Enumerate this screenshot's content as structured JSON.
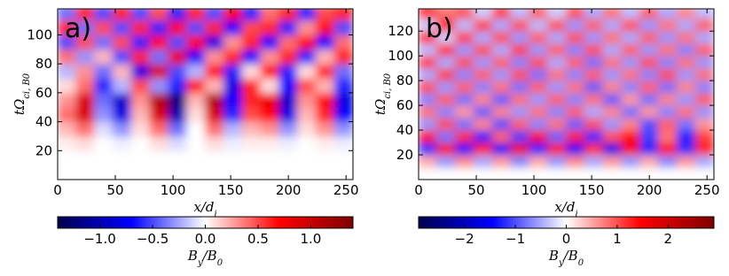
{
  "chart_data": [
    {
      "type": "heatmap",
      "panel_label": "a)",
      "xbins": [
        0,
        16,
        32,
        48,
        64,
        80,
        96,
        112,
        128,
        144,
        160,
        176,
        192,
        208,
        224,
        240,
        256
      ],
      "ybins": [
        0,
        10,
        20,
        30,
        40,
        50,
        60,
        70,
        80,
        90,
        100,
        110,
        120
      ],
      "z": [
        [
          0,
          0,
          0,
          0,
          0,
          0,
          0,
          0,
          0,
          0,
          0,
          0,
          0,
          0,
          0,
          0
        ],
        [
          0,
          0,
          0,
          0,
          0,
          0,
          0,
          0,
          0,
          0,
          0,
          0,
          0,
          0,
          0,
          0
        ],
        [
          0.05,
          0.1,
          0,
          -0.05,
          0,
          0.1,
          -0.1,
          0,
          0.1,
          -0.05,
          0.05,
          0.05,
          -0.05,
          0,
          0.05,
          -0.05
        ],
        [
          0.2,
          0.4,
          -0.1,
          -0.3,
          0.1,
          0.4,
          -0.4,
          0,
          0.4,
          -0.2,
          0.2,
          0.3,
          -0.3,
          0.1,
          0.3,
          -0.3
        ],
        [
          0.4,
          0.9,
          -0.3,
          -0.8,
          0.2,
          0.9,
          -1.0,
          0.1,
          0.9,
          -0.6,
          0.5,
          0.7,
          -0.8,
          0.2,
          0.6,
          -0.7
        ],
        [
          0.3,
          0.9,
          -0.4,
          -0.9,
          0.3,
          1.1,
          -1.2,
          0.2,
          1.1,
          -0.7,
          0.6,
          0.8,
          -0.9,
          0.3,
          0.7,
          -0.8
        ],
        [
          0.1,
          0.4,
          -0.6,
          -0.2,
          0.5,
          -0.3,
          -0.6,
          0.7,
          0.2,
          -0.8,
          0.6,
          0.1,
          -0.7,
          0.5,
          0.2,
          -0.6
        ],
        [
          -0.2,
          0.3,
          -0.4,
          0.2,
          -0.8,
          0.9,
          -0.5,
          -0.2,
          0.7,
          -0.6,
          0.1,
          0.7,
          -0.6,
          0.1,
          0.6,
          -0.4
        ],
        [
          0.4,
          -0.3,
          0.2,
          -0.5,
          0.6,
          -0.4,
          0.8,
          -0.7,
          0.3,
          0.6,
          -0.7,
          0.3,
          0.6,
          -0.6,
          0.2,
          0.6
        ],
        [
          -0.5,
          0.5,
          -0.4,
          0.5,
          -0.6,
          0.7,
          -0.5,
          0.7,
          -0.8,
          0.3,
          0.6,
          -0.7,
          0.4,
          0.7,
          -0.7,
          0.4
        ],
        [
          0.6,
          -0.4,
          0.5,
          -0.5,
          0.6,
          -0.6,
          0.7,
          -0.5,
          0.6,
          -0.7,
          0.5,
          0.6,
          -0.6,
          0.3,
          0.7,
          -0.5
        ],
        [
          -0.4,
          0.6,
          -0.5,
          0.6,
          -0.5,
          0.5,
          -0.6,
          0.6,
          -0.5,
          0.7,
          -0.6,
          0.4,
          0.6,
          -0.6,
          0.5,
          0.6
        ]
      ],
      "xlim": [
        0,
        256
      ],
      "ylim": [
        0,
        118
      ],
      "xticks": [
        0,
        50,
        100,
        150,
        200,
        250
      ],
      "yticks": [
        20,
        40,
        60,
        80,
        100
      ],
      "xlabel": [
        "x/d",
        "i"
      ],
      "ylabel": [
        "tΩ",
        "ci, B0"
      ],
      "clim": [
        -1.4,
        1.4
      ],
      "colorbar_ticks": [
        {
          "value": -1,
          "label": "−1.0"
        },
        {
          "value": -0.5,
          "label": "−0.5"
        },
        {
          "value": 0,
          "label": "0.0"
        },
        0.5,
        {
          "value": 1,
          "label": "1.0"
        }
      ],
      "colorbar_label": [
        "B",
        "y",
        "/B",
        "0"
      ],
      "colormap": "seismic"
    },
    {
      "type": "heatmap",
      "panel_label": "b)",
      "xbins": [
        0,
        16,
        32,
        48,
        64,
        80,
        96,
        112,
        128,
        144,
        160,
        176,
        192,
        208,
        224,
        240,
        256
      ],
      "ybins": [
        0,
        10,
        20,
        30,
        40,
        50,
        60,
        70,
        80,
        90,
        100,
        110,
        120,
        130,
        140
      ],
      "z": [
        [
          0,
          0,
          0,
          0,
          0,
          0,
          0,
          0,
          0,
          0,
          0,
          0,
          0,
          0,
          0,
          0
        ],
        [
          0.5,
          -0.6,
          0.7,
          -0.5,
          0.6,
          -0.7,
          0.5,
          -0.6,
          0.7,
          -0.5,
          0.6,
          -0.6,
          0.5,
          -0.7,
          0.6,
          -0.5
        ],
        [
          -1.2,
          1.5,
          -1.4,
          1.3,
          -1.5,
          1.6,
          -1.3,
          1.4,
          -1.5,
          1.2,
          -1.6,
          1.5,
          -1.3,
          1.4,
          -1.2,
          1.3
        ],
        [
          1.4,
          -0.8,
          1.2,
          -1.3,
          0.9,
          -1.1,
          1.5,
          -0.9,
          1.3,
          -1.2,
          1.0,
          1.4,
          -1.1,
          0.8,
          -1.3,
          1.1
        ],
        [
          -0.6,
          1.0,
          -0.8,
          0.7,
          -1.0,
          0.9,
          -0.7,
          0.8,
          -0.9,
          1.0,
          -0.6,
          0.7,
          -1.0,
          0.9,
          -0.8,
          0.6
        ],
        [
          0.8,
          -0.7,
          0.6,
          -0.9,
          0.7,
          -0.6,
          0.8,
          -0.7,
          0.9,
          -0.5,
          0.7,
          -0.8,
          0.6,
          -0.7,
          0.8,
          -0.6
        ],
        [
          -0.7,
          0.9,
          -0.8,
          0.7,
          -0.9,
          0.8,
          -0.6,
          0.9,
          -0.7,
          0.8,
          -0.9,
          0.6,
          -0.8,
          0.7,
          -0.6,
          0.9
        ],
        [
          1.0,
          -0.6,
          0.9,
          -0.7,
          0.8,
          -0.8,
          0.9,
          -0.6,
          0.8,
          -0.9,
          0.7,
          -0.7,
          0.9,
          -0.8,
          0.7,
          -0.7
        ],
        [
          -0.5,
          1.1,
          -0.7,
          0.9,
          -0.6,
          1.0,
          -0.8,
          0.8,
          -0.7,
          0.9,
          -0.6,
          0.8,
          -0.7,
          1.0,
          -0.6,
          0.8
        ],
        [
          1.1,
          -0.5,
          1.0,
          -0.6,
          0.9,
          -0.7,
          1.0,
          -0.5,
          0.9,
          -0.8,
          0.8,
          -0.6,
          1.0,
          -0.7,
          0.8,
          -0.6
        ],
        [
          -0.4,
          1.2,
          -0.6,
          1.0,
          -0.5,
          1.1,
          -0.6,
          0.9,
          -0.7,
          1.0,
          -0.5,
          0.9,
          -0.6,
          0.8,
          -0.7,
          0.9
        ],
        [
          1.2,
          -0.3,
          1.1,
          -0.5,
          1.0,
          -0.6,
          0.9,
          -0.5,
          1.0,
          -0.6,
          0.8,
          -0.5,
          0.9,
          -0.6,
          0.8,
          -0.5
        ],
        [
          -0.3,
          1.3,
          -0.4,
          1.1,
          -0.5,
          1.0,
          -0.4,
          1.0,
          -0.6,
          0.9,
          -0.5,
          1.0,
          -0.6,
          0.8,
          -0.5,
          0.9
        ],
        [
          1.2,
          0.8,
          1.0,
          -0.3,
          1.1,
          -0.4,
          0.9,
          -0.3,
          1.0,
          -0.5,
          0.8,
          -0.4,
          0.9,
          -0.5,
          0.7,
          -0.4
        ]
      ],
      "xlim": [
        0,
        256
      ],
      "ylim": [
        0,
        138
      ],
      "xticks": [
        0,
        50,
        100,
        150,
        200,
        250
      ],
      "yticks": [
        20,
        40,
        60,
        80,
        100,
        120
      ],
      "xlabel": [
        "x/d",
        "i"
      ],
      "ylabel": [
        "tΩ",
        "ci, B0"
      ],
      "clim": [
        -2.9,
        2.9
      ],
      "colorbar_ticks": [
        {
          "value": -2,
          "label": "−2"
        },
        {
          "value": -1,
          "label": "−1"
        },
        0,
        1,
        2
      ],
      "colorbar_label": [
        "B",
        "y",
        "/B",
        "0"
      ],
      "colormap": "seismic"
    }
  ]
}
